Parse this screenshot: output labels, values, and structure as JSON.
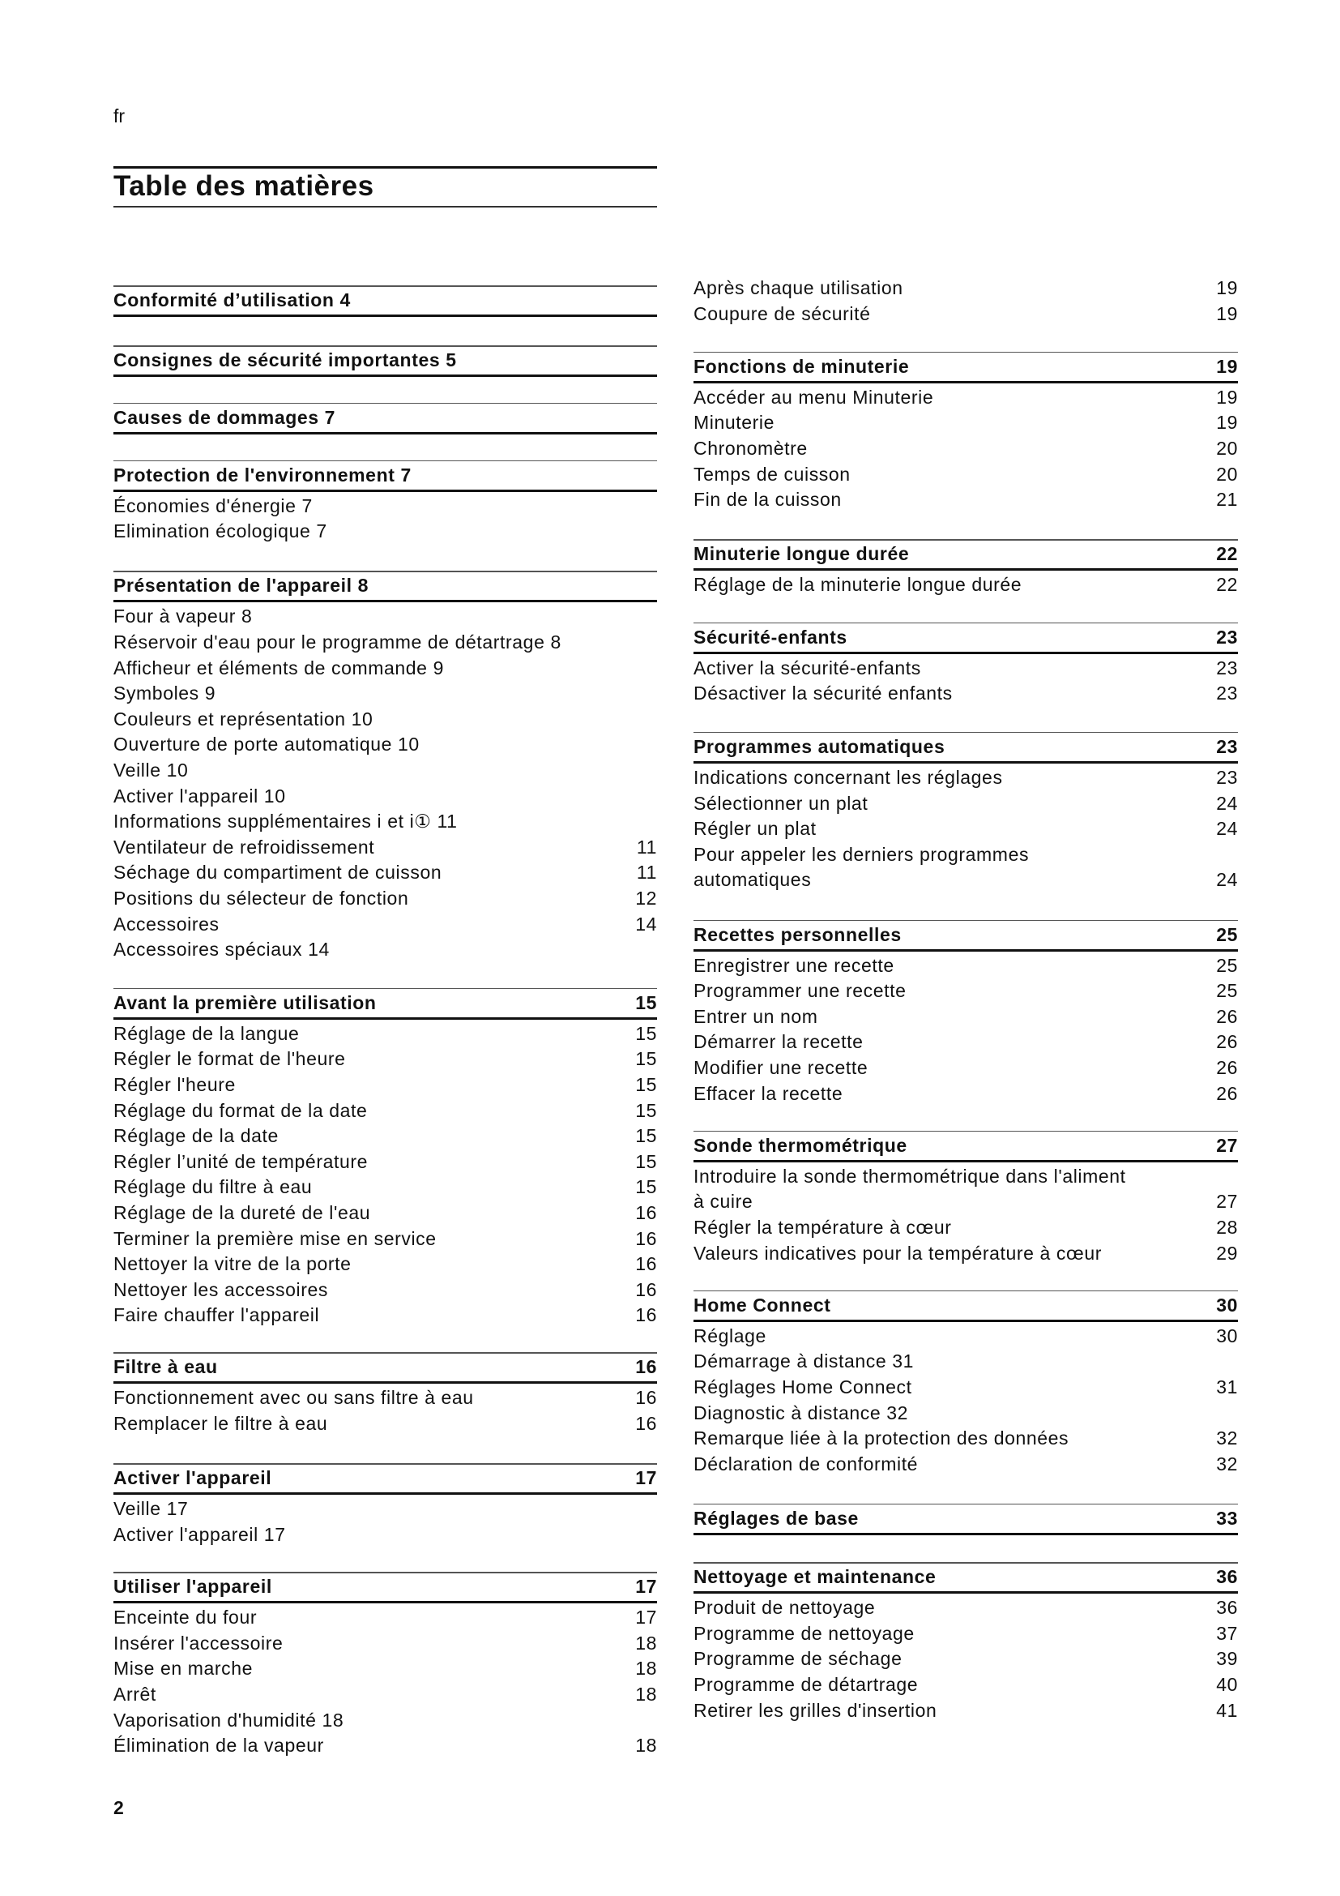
{
  "language": "fr",
  "title": "Table des matières",
  "page_number": "2",
  "left_column": [
    {
      "title": "Conformité d’utilisation 4",
      "items": []
    },
    {
      "title": "Consignes de sécurité importantes 5",
      "items": []
    },
    {
      "title": "Causes de dommages 7",
      "items": []
    },
    {
      "title": " Protection de l'environnement 7",
      "items": [
        {
          "text": "Économies d'énergie 7"
        },
        {
          "text": "Elimination écologique 7"
        }
      ]
    },
    {
      "title": "Présentation de l'appareil 8",
      "items": [
        {
          "text": "Four à vapeur 8"
        },
        {
          "text": "Réservoir d'eau pour le programme de détartrage 8"
        },
        {
          "text": "Afficheur et éléments de commande 9"
        },
        {
          "text": "Symboles 9"
        },
        {
          "text": "Couleurs et représentation 10"
        },
        {
          "text": "Ouverture de porte automatique 10"
        },
        {
          "text": "Veille 10"
        },
        {
          "text": "Activer l'appareil 10"
        },
        {
          "text": "Informations supplémentaires i et i①   11"
        },
        {
          "text": "Ventilateur de refroidissement",
          "page": "11"
        },
        {
          "text": "Séchage du compartiment de cuisson",
          "page": "11"
        },
        {
          "text": "Positions du sélecteur de fonction",
          "page": "12"
        },
        {
          "text": "Accessoires",
          "page": "14"
        },
        {
          "text": "Accessoires spéciaux 14"
        }
      ]
    },
    {
      "title": "Avant la première utilisation",
      "page": "15",
      "items": [
        {
          "text": "Réglage de la langue",
          "page": "15"
        },
        {
          "text": "Régler le format de l'heure",
          "page": "15"
        },
        {
          "text": "Régler l'heure",
          "page": "15"
        },
        {
          "text": "Réglage du format de la date",
          "page": "15"
        },
        {
          "text": "Réglage de la date",
          "page": "15"
        },
        {
          "text": "Régler l’unité de température",
          "page": "15"
        },
        {
          "text": "Réglage du filtre à eau",
          "page": "15"
        },
        {
          "text": "Réglage de la dureté de l'eau",
          "page": "16"
        },
        {
          "text": "Terminer la première mise en service",
          "page": "16"
        },
        {
          "text": "Nettoyer la vitre de la porte",
          "page": "16"
        },
        {
          "text": "Nettoyer les accessoires",
          "page": "16"
        },
        {
          "text": "Faire chauffer l'appareil",
          "page": "16"
        }
      ]
    },
    {
      "title": "Filtre à eau",
      "page": "16",
      "items": [
        {
          "text": "Fonctionnement avec ou sans filtre à eau",
          "page": "16"
        },
        {
          "text": "Remplacer le filtre à eau",
          "page": "16"
        }
      ]
    },
    {
      "title": "Activer l'appareil",
      "page": "17",
      "items": [
        {
          "text": "Veille 17"
        },
        {
          "text": "Activer l'appareil 17"
        }
      ]
    },
    {
      "title": "Utiliser l'appareil",
      "page": "17",
      "items": [
        {
          "text": "Enceinte du four",
          "page": "17"
        },
        {
          "text": "Insérer l'accessoire",
          "page": "18"
        },
        {
          "text": "Mise en marche",
          "page": "18"
        },
        {
          "text": "Arrêt",
          "page": "18"
        },
        {
          "text": "Vaporisation d'humidité 18"
        },
        {
          "text": "Élimination de la vapeur",
          "page": "18"
        }
      ]
    }
  ],
  "right_column": [
    {
      "items": [
        {
          "text": "Après chaque utilisation",
          "page": "19"
        },
        {
          "text": "Coupure de sécurité",
          "page": "19"
        }
      ]
    },
    {
      "title": "Fonctions de minuterie",
      "page": "19",
      "items": [
        {
          "text": "Accéder au menu Minuterie",
          "page": "19"
        },
        {
          "text": "Minuterie",
          "page": "19"
        },
        {
          "text": "Chronomètre",
          "page": "20"
        },
        {
          "text": "Temps de cuisson",
          "page": "20"
        },
        {
          "text": "Fin de la cuisson",
          "page": "21"
        }
      ]
    },
    {
      "title": "Minuterie longue durée",
      "page": "22",
      "items": [
        {
          "text": "Réglage de la minuterie longue durée",
          "page": "22"
        }
      ]
    },
    {
      "title": "Sécurité-enfants",
      "page": "23",
      "items": [
        {
          "text": "Activer la sécurité-enfants",
          "page": "23"
        },
        {
          "text": "Désactiver la sécurité enfants",
          "page": "23"
        }
      ]
    },
    {
      "title": "Programmes automatiques",
      "page": "23",
      "items": [
        {
          "text": "Indications concernant les réglages",
          "page": "23"
        },
        {
          "text": "Sélectionner un plat",
          "page": "24"
        },
        {
          "text": "Régler un plat",
          "page": "24"
        },
        {
          "text": "Pour appeler les derniers programmes\nautomatiques",
          "page": "24"
        }
      ]
    },
    {
      "title": "Recettes personnelles",
      "page": "25",
      "items": [
        {
          "text": "Enregistrer une recette",
          "page": "25"
        },
        {
          "text": "Programmer une recette",
          "page": "25"
        },
        {
          "text": "Entrer un nom",
          "page": "26"
        },
        {
          "text": "Démarrer la recette",
          "page": "26"
        },
        {
          "text": "Modifier une recette",
          "page": "26"
        },
        {
          "text": "Effacer la recette",
          "page": "26"
        }
      ]
    },
    {
      "title": "Sonde thermométrique",
      "page": "27",
      "items": [
        {
          "text": "Introduire la sonde thermométrique dans l'aliment\nà cuire",
          "page": "27"
        },
        {
          "text": "Régler la température à cœur",
          "page": "28"
        },
        {
          "text": "Valeurs indicatives pour la température à cœur",
          "page": "29"
        }
      ]
    },
    {
      "title": "Home Connect",
      "page": "30",
      "items": [
        {
          "text": "Réglage",
          "page": "30"
        },
        {
          "text": "Démarrage à distance 31"
        },
        {
          "text": "Réglages Home Connect",
          "page": "31"
        },
        {
          "text": "Diagnostic à distance 32"
        },
        {
          "text": "Remarque liée à la protection des données",
          "page": "32"
        },
        {
          "text": "Déclaration de conformité",
          "page": "32"
        }
      ]
    },
    {
      "title": "Réglages de base",
      "page": "33",
      "items": []
    },
    {
      "title": "Nettoyage et maintenance",
      "page": "36",
      "items": [
        {
          "text": "Produit de nettoyage",
          "page": "36"
        },
        {
          "text": "Programme de nettoyage",
          "page": "37"
        },
        {
          "text": "Programme de séchage",
          "page": "39"
        },
        {
          "text": "Programme de détartrage",
          "page": "40"
        },
        {
          "text": "Retirer les grilles d'insertion",
          "page": "41"
        }
      ]
    }
  ]
}
